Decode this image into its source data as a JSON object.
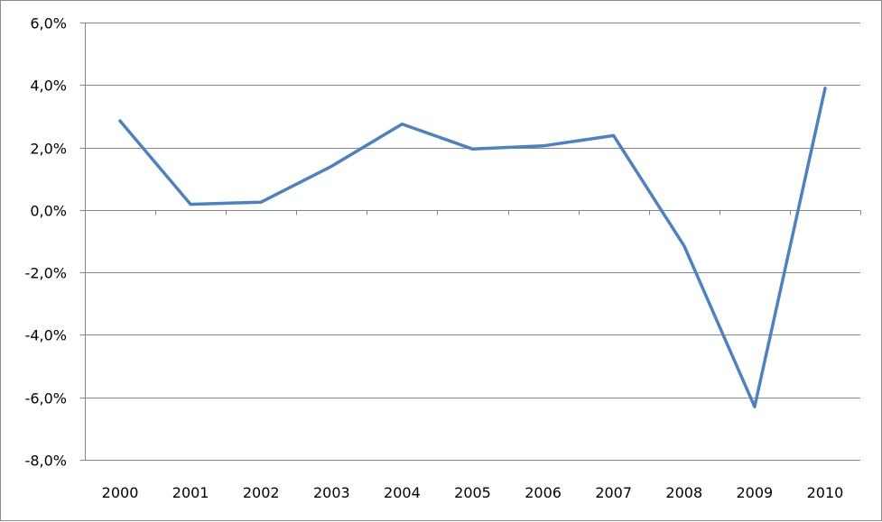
{
  "chart_data": {
    "type": "line",
    "categories": [
      "2000",
      "2001",
      "2002",
      "2003",
      "2004",
      "2005",
      "2006",
      "2007",
      "2008",
      "2009",
      "2010"
    ],
    "series": [
      {
        "values": [
          2.85,
          0.18,
          0.25,
          1.4,
          2.75,
          1.95,
          2.05,
          2.38,
          -1.15,
          -6.3,
          3.9
        ],
        "color": "#4f81bd"
      }
    ],
    "ylim": [
      -8,
      6
    ],
    "y_ticks": [
      6,
      4,
      2,
      0,
      -2,
      -4,
      -6,
      -8
    ],
    "y_tick_labels": [
      "6,0%",
      "4,0%",
      "2,0%",
      "0,0%",
      "-2,0%",
      "-4,0%",
      "-6,0%",
      "-8,0%"
    ],
    "grid": true,
    "legend": "none",
    "gridline_color": "#868686",
    "axis_color": "#868686"
  }
}
